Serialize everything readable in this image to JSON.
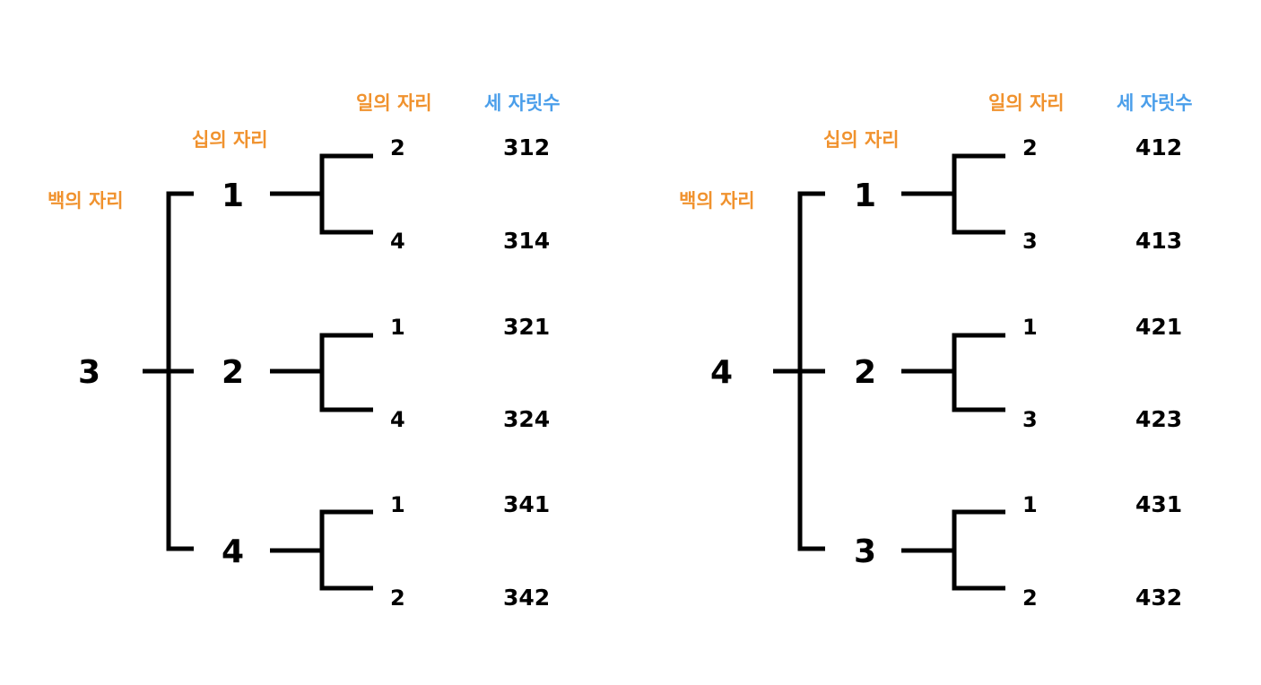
{
  "labels": {
    "hundreds": "백의 자리",
    "tens": "십의 자리",
    "ones": "일의 자리",
    "result": "세 자릿수"
  },
  "colors": {
    "label": "#F0922E",
    "result_header": "#4A9EEA",
    "text": "#000000"
  },
  "trees": [
    {
      "root": "3",
      "branches": [
        {
          "digit": "1",
          "leaves": [
            {
              "digit": "2",
              "number": "312"
            },
            {
              "digit": "4",
              "number": "314"
            }
          ]
        },
        {
          "digit": "2",
          "leaves": [
            {
              "digit": "1",
              "number": "321"
            },
            {
              "digit": "4",
              "number": "324"
            }
          ]
        },
        {
          "digit": "4",
          "leaves": [
            {
              "digit": "1",
              "number": "341"
            },
            {
              "digit": "2",
              "number": "342"
            }
          ]
        }
      ]
    },
    {
      "root": "4",
      "branches": [
        {
          "digit": "1",
          "leaves": [
            {
              "digit": "2",
              "number": "412"
            },
            {
              "digit": "3",
              "number": "413"
            }
          ]
        },
        {
          "digit": "2",
          "leaves": [
            {
              "digit": "1",
              "number": "421"
            },
            {
              "digit": "3",
              "number": "423"
            }
          ]
        },
        {
          "digit": "3",
          "leaves": [
            {
              "digit": "1",
              "number": "431"
            },
            {
              "digit": "2",
              "number": "432"
            }
          ]
        }
      ]
    }
  ]
}
